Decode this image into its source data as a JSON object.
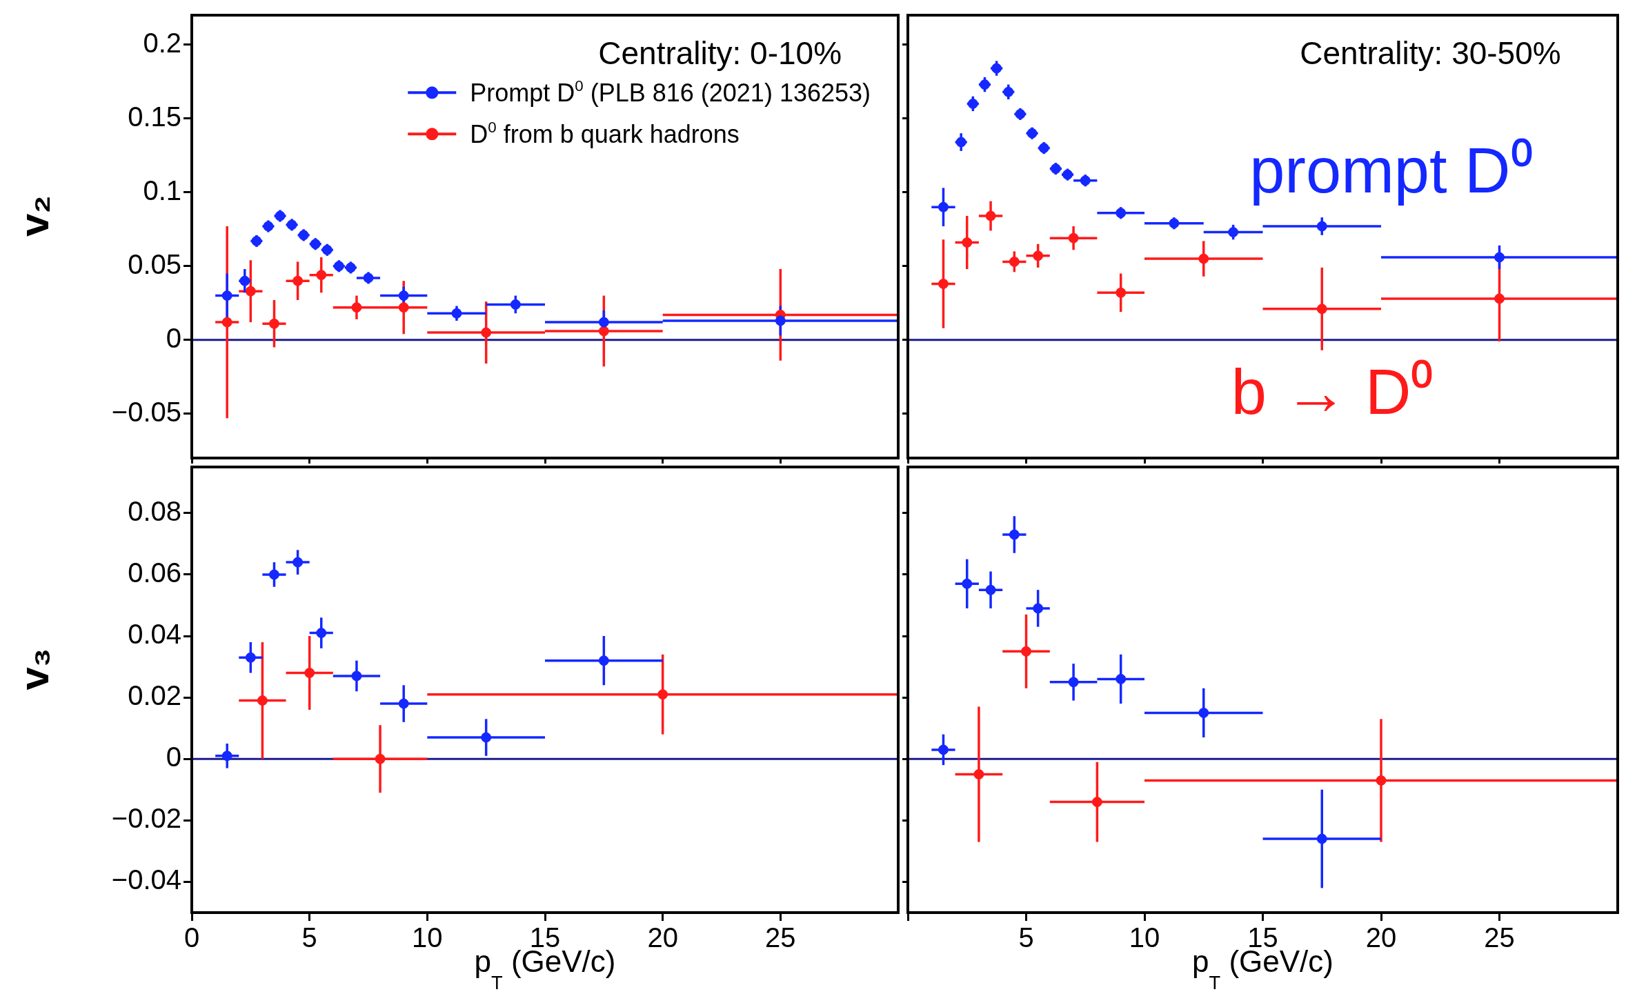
{
  "chart_data": [
    {
      "type": "scatter",
      "ylabel": "v₂",
      "xlim": [
        0,
        30
      ],
      "xticks": [
        0,
        5,
        10,
        15,
        20,
        25
      ],
      "ylim": [
        -0.08,
        0.22
      ],
      "yticks": [
        -0.05,
        0,
        0.05,
        0.1,
        0.15,
        0.2
      ],
      "tick_labels": "y",
      "marker": "circle",
      "legend": "top right",
      "annotations": [
        "Centrality: 0-10%"
      ],
      "ref_lines": [
        {
          "axis": "y",
          "value": 0,
          "color": "#1c1c8c"
        }
      ],
      "series": [
        {
          "name": "Prompt D$^{0}$ (PLB 816 (2021) 136253)",
          "color": "#1428ff",
          "x": [
            1.5,
            2.25,
            2.75,
            3.25,
            3.75,
            4.25,
            4.75,
            5.25,
            5.75,
            6.25,
            6.75,
            7.5,
            9,
            11.25,
            13.75,
            17.5,
            25
          ],
          "values": [
            0.03,
            0.04,
            0.067,
            0.077,
            0.084,
            0.078,
            0.071,
            0.065,
            0.061,
            0.05,
            0.049,
            0.042,
            0.03,
            0.018,
            0.024,
            0.012,
            0.013
          ],
          "errors": [
            0.015,
            0.008,
            0.004,
            0.004,
            0.004,
            0.004,
            0.004,
            0.004,
            0.004,
            0.004,
            0.004,
            0.004,
            0.006,
            0.005,
            0.006,
            0.008,
            0.01
          ],
          "xerrors": [
            0.5,
            0.25,
            0.25,
            0.25,
            0.25,
            0.25,
            0.25,
            0.25,
            0.25,
            0.25,
            0.25,
            0.5,
            1,
            1.25,
            1.25,
            2.5,
            5
          ]
        },
        {
          "name": "D$^{0}$ from b quark hadrons",
          "color": "#ff1a1a",
          "x": [
            1.5,
            2.5,
            3.5,
            4.5,
            5.5,
            7,
            9,
            12.5,
            17.5,
            25
          ],
          "values": [
            0.012,
            0.033,
            0.011,
            0.04,
            0.044,
            0.022,
            0.022,
            0.005,
            0.006,
            0.017
          ],
          "errors": [
            0.065,
            0.021,
            0.016,
            0.013,
            0.012,
            0.008,
            0.018,
            0.021,
            0.024,
            0.031
          ],
          "xerrors": [
            0.5,
            0.5,
            0.5,
            0.5,
            0.5,
            1,
            1,
            2.5,
            2.5,
            5
          ]
        }
      ]
    },
    {
      "type": "scatter",
      "xlim": [
        0,
        30
      ],
      "xticks": [
        0,
        5,
        10,
        15,
        20,
        25
      ],
      "ylim": [
        -0.08,
        0.22
      ],
      "yticks": [
        -0.05,
        0,
        0.05,
        0.1,
        0.15,
        0.2
      ],
      "tick_labels": false,
      "marker": "circle",
      "annotations": [
        "Centrality: 30-50%",
        "prompt D⁰",
        "b → D⁰"
      ],
      "ref_lines": [
        {
          "axis": "y",
          "value": 0,
          "color": "#1c1c8c"
        }
      ],
      "series": [
        {
          "color": "#1428ff",
          "x": [
            1.5,
            2.25,
            2.75,
            3.25,
            3.75,
            4.25,
            4.75,
            5.25,
            5.75,
            6.25,
            6.75,
            7.5,
            9,
            11.25,
            13.75,
            17.5,
            25
          ],
          "values": [
            0.09,
            0.134,
            0.16,
            0.173,
            0.184,
            0.168,
            0.153,
            0.14,
            0.13,
            0.116,
            0.112,
            0.108,
            0.086,
            0.079,
            0.073,
            0.077,
            0.056
          ],
          "errors": [
            0.013,
            0.006,
            0.005,
            0.005,
            0.005,
            0.005,
            0.004,
            0.004,
            0.004,
            0.004,
            0.004,
            0.004,
            0.004,
            0.004,
            0.005,
            0.006,
            0.008
          ],
          "xerrors": [
            0.5,
            0.25,
            0.25,
            0.25,
            0.25,
            0.25,
            0.25,
            0.25,
            0.25,
            0.25,
            0.25,
            0.5,
            1,
            1.25,
            1.25,
            2.5,
            5
          ]
        },
        {
          "color": "#ff1a1a",
          "x": [
            1.5,
            2.5,
            3.5,
            4.5,
            5.5,
            7,
            9,
            12.5,
            17.5,
            25
          ],
          "values": [
            0.038,
            0.066,
            0.084,
            0.053,
            0.057,
            0.069,
            0.032,
            0.055,
            0.021,
            0.028
          ],
          "errors": [
            0.03,
            0.018,
            0.01,
            0.007,
            0.008,
            0.008,
            0.013,
            0.012,
            0.028,
            0.029
          ],
          "xerrors": [
            0.5,
            0.5,
            0.5,
            0.5,
            0.5,
            1,
            1,
            2.5,
            2.5,
            5
          ]
        }
      ]
    },
    {
      "type": "scatter",
      "ylabel": "v₃",
      "xlabel": "p$_{T}$ (GeV/c)",
      "xlim": [
        0,
        30
      ],
      "xticks": [
        0,
        5,
        10,
        15,
        20,
        25
      ],
      "ylim": [
        -0.05,
        0.095
      ],
      "yticks": [
        -0.04,
        -0.02,
        0,
        0.02,
        0.04,
        0.06,
        0.08
      ],
      "marker": "circle",
      "ref_lines": [
        {
          "axis": "y",
          "value": 0,
          "color": "#1c1c8c"
        }
      ],
      "series": [
        {
          "color": "#1428ff",
          "x": [
            1.5,
            2.5,
            3.5,
            4.5,
            5.5,
            7,
            9,
            12.5,
            17.5
          ],
          "values": [
            0.001,
            0.033,
            0.06,
            0.064,
            0.041,
            0.027,
            0.018,
            0.007,
            0.032
          ],
          "errors": [
            0.004,
            0.005,
            0.004,
            0.004,
            0.005,
            0.005,
            0.006,
            0.006,
            0.008
          ],
          "xerrors": [
            0.5,
            0.5,
            0.5,
            0.5,
            0.5,
            1,
            1,
            2.5,
            2.5
          ]
        },
        {
          "color": "#ff1a1a",
          "x": [
            3,
            5,
            8,
            20
          ],
          "values": [
            0.019,
            0.028,
            0.0,
            0.021
          ],
          "errors": [
            0.019,
            0.012,
            0.011,
            0.013
          ],
          "xerrors": [
            1,
            1,
            2,
            10
          ]
        }
      ]
    },
    {
      "type": "scatter",
      "xlabel": "p$_{T}$ (GeV/c)",
      "xlim": [
        0,
        30
      ],
      "xticks": [
        {
          "value": 0,
          "label": null
        },
        5,
        10,
        15,
        20,
        25
      ],
      "ylim": [
        -0.05,
        0.095
      ],
      "yticks": [
        -0.04,
        -0.02,
        0,
        0.02,
        0.04,
        0.06,
        0.08
      ],
      "tick_labels": "x",
      "marker": "circle",
      "ref_lines": [
        {
          "axis": "y",
          "value": 0,
          "color": "#1c1c8c"
        }
      ],
      "series": [
        {
          "color": "#1428ff",
          "x": [
            1.5,
            2.5,
            3.5,
            4.5,
            5.5,
            7,
            9,
            12.5,
            17.5
          ],
          "values": [
            0.003,
            0.057,
            0.055,
            0.073,
            0.049,
            0.025,
            0.026,
            0.015,
            -0.026
          ],
          "errors": [
            0.005,
            0.008,
            0.006,
            0.006,
            0.006,
            0.006,
            0.008,
            0.008,
            0.016
          ],
          "xerrors": [
            0.5,
            0.5,
            0.5,
            0.5,
            0.5,
            1,
            1,
            2.5,
            2.5
          ]
        },
        {
          "color": "#ff1a1a",
          "x": [
            3,
            5,
            8,
            20
          ],
          "values": [
            -0.005,
            0.035,
            -0.014,
            -0.007
          ],
          "errors": [
            0.022,
            0.012,
            0.013,
            0.02
          ],
          "xerrors": [
            1,
            1,
            2,
            10
          ]
        }
      ]
    }
  ]
}
